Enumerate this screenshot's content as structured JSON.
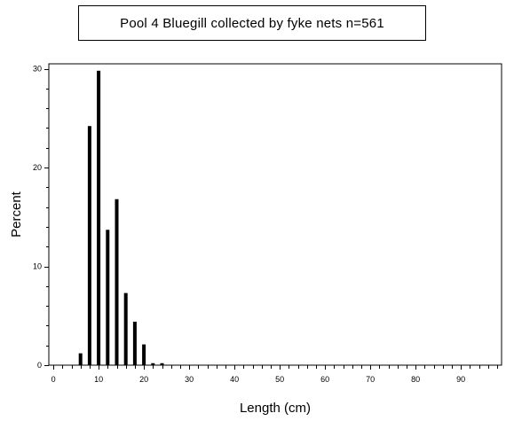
{
  "chart_data": {
    "type": "bar",
    "title": "Pool 4 Bluegill collected by fyke nets   n=561",
    "xlabel": "Length (cm)",
    "ylabel": "Percent",
    "xlim": [
      -1,
      99
    ],
    "ylim": [
      0,
      30.5
    ],
    "x_ticks": [
      0,
      10,
      20,
      30,
      40,
      50,
      60,
      70,
      80,
      90
    ],
    "y_ticks": [
      0,
      10,
      20,
      30
    ],
    "grid": false,
    "bar_color": "#000000",
    "x": [
      6,
      8,
      10,
      12,
      14,
      16,
      18,
      20,
      22,
      24
    ],
    "values": [
      1.2,
      24.2,
      29.8,
      13.7,
      16.8,
      7.3,
      4.4,
      2.1,
      0.2,
      0.2
    ]
  }
}
